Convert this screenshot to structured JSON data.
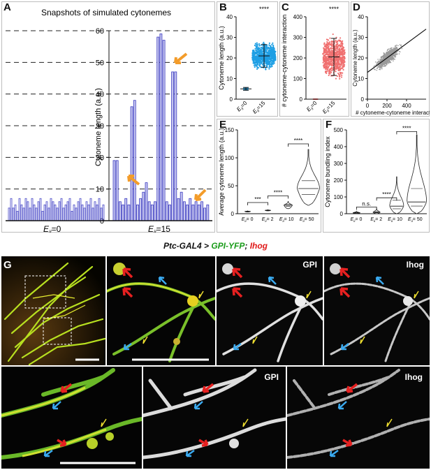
{
  "figure": {
    "panels": {
      "A": {
        "letter": "A",
        "title": "Snapshots of simulated cytonemes",
        "ylabel": "Cytoneme length (a.u.)",
        "condition_left": "E",
        "condition_left_sub": "ii",
        "condition_left_value": "=0",
        "condition_right": "E",
        "condition_right_sub": "ii",
        "condition_right_value": "=15"
      },
      "B": {
        "letter": "B",
        "significance": "****"
      },
      "C": {
        "letter": "C",
        "significance": "****"
      },
      "D": {
        "letter": "D"
      },
      "E": {
        "letter": "E"
      },
      "F": {
        "letter": "F"
      },
      "G": {
        "letter": "G",
        "genotype_part1": "Ptc-GAL4 > ",
        "genotype_part2": "GPI-YFP",
        "genotype_part3": "; ",
        "genotype_part4": "Ihog",
        "color_gpi": "#1a9c1a",
        "color_ihog": "#e01b1b",
        "label_gpi_top": "GPI",
        "label_ihog_top": "Ihog",
        "label_gpi_bottom": "GPI",
        "label_ihog_bottom": "Ihog"
      }
    }
  },
  "chart_data": [
    {
      "id": "A",
      "type": "bar",
      "title": "Snapshots of simulated cytonemes",
      "ylabel": "Cytoneme length (a.u.)",
      "ylim": [
        0,
        60
      ],
      "yticks": [
        0,
        10,
        20,
        30,
        40,
        50,
        60
      ],
      "gridlines": "dashed horizontal at every 10",
      "series": [
        {
          "name": "",
          "x_label": "Eii=0",
          "values": [
            4,
            7,
            4,
            5,
            3,
            7,
            5,
            4,
            7,
            6,
            4,
            7,
            5,
            4,
            6,
            7,
            3,
            5,
            6,
            4,
            7,
            6,
            5,
            4,
            6,
            7,
            4,
            5,
            6,
            7,
            3,
            5,
            4,
            6,
            7,
            5,
            4,
            6,
            5,
            7,
            4,
            6,
            5,
            7,
            4,
            5
          ]
        },
        {
          "name": "",
          "x_label": "Eii=15",
          "values": [
            19,
            19,
            6,
            5,
            7,
            5,
            36,
            38,
            5,
            7,
            9,
            12,
            6,
            5,
            6,
            58,
            59,
            57,
            6,
            5,
            47,
            47,
            7,
            9,
            6,
            5,
            7,
            5,
            6,
            5,
            6,
            4,
            5
          ]
        }
      ],
      "annotations": [
        "orange arrow near bar at ~18",
        "orange arrow near tallest bar ~58",
        "orange arrow near bar at ~7"
      ]
    },
    {
      "id": "B",
      "type": "scatter",
      "ylabel": "Cytoneme length (a.u.)",
      "ylim": [
        0,
        40
      ],
      "yticks": [
        0,
        10,
        20,
        30,
        40
      ],
      "categories": [
        "Eii=0",
        "Eii=15"
      ],
      "mean": [
        5,
        21
      ],
      "sd": [
        0.7,
        5.5
      ],
      "point_range": [
        [
          4,
          6
        ],
        [
          7,
          38
        ]
      ],
      "significance": "****"
    },
    {
      "id": "C",
      "type": "scatter",
      "ylabel": "# cytoneme-cytoneme interaction",
      "ylim": [
        0,
        400
      ],
      "yticks": [
        0,
        100,
        200,
        300,
        400
      ],
      "categories": [
        "Eii=0",
        "Eii=15"
      ],
      "mean": [
        0,
        205
      ],
      "sd": [
        0,
        90
      ],
      "point_range": [
        [
          0,
          0
        ],
        [
          10,
          440
        ]
      ],
      "significance": "****"
    },
    {
      "id": "D",
      "type": "scatter",
      "xlabel": "# cytoneme-cytoneme interaction",
      "ylabel": "Cytoneme length (a.u.)",
      "xlim": [
        0,
        600
      ],
      "ylim": [
        0,
        40
      ],
      "xticks": [
        0,
        200,
        400
      ],
      "yticks": [
        0,
        10,
        20,
        30,
        40
      ],
      "trendline": {
        "x": [
          0,
          600
        ],
        "y": [
          13,
          34
        ]
      }
    },
    {
      "id": "E",
      "type": "violin",
      "ylabel": "Average cytoneme length (a.u.)",
      "ylim": [
        0,
        150
      ],
      "yticks": [
        0,
        50,
        100,
        150
      ],
      "categories": [
        "Eii= 0",
        "Eii= 2",
        "Eii= 10",
        "Eii= 50"
      ],
      "median": [
        4,
        6,
        15,
        45
      ],
      "range": [
        [
          3,
          5
        ],
        [
          5,
          7
        ],
        [
          9,
          22
        ],
        [
          15,
          115
        ]
      ],
      "comparisons": [
        {
          "pair": [
            "Eii= 0",
            "Eii= 2"
          ],
          "label": "***"
        },
        {
          "pair": [
            "Eii= 2",
            "Eii= 10"
          ],
          "label": "****"
        },
        {
          "pair": [
            "Eii= 10",
            "Eii= 50"
          ],
          "label": "****"
        }
      ]
    },
    {
      "id": "F",
      "type": "violin",
      "ylabel": "Cytoneme bundling index",
      "ylim": [
        0,
        500
      ],
      "yticks": [
        0,
        100,
        200,
        300,
        400,
        500
      ],
      "categories": [
        "Eii= 0",
        "Eii= 2",
        "Eii= 10",
        "Eii= 50"
      ],
      "median": [
        5,
        8,
        45,
        70
      ],
      "range": [
        [
          0,
          15
        ],
        [
          0,
          30
        ],
        [
          0,
          220
        ],
        [
          0,
          470
        ]
      ],
      "comparisons": [
        {
          "pair": [
            "Eii= 0",
            "Eii= 2"
          ],
          "label": "n.s."
        },
        {
          "pair": [
            "Eii= 2",
            "Eii= 10"
          ],
          "label": "****"
        },
        {
          "pair": [
            "Eii= 10",
            "Eii= 50"
          ],
          "label": "****"
        }
      ]
    }
  ]
}
